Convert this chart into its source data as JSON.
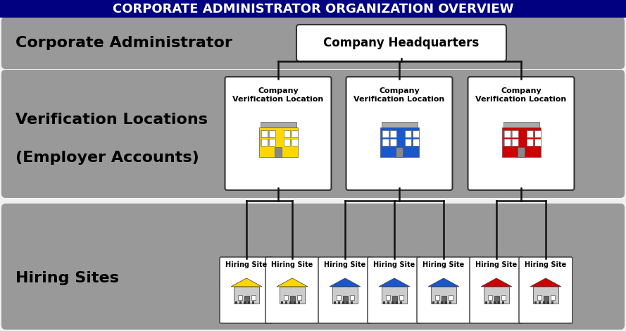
{
  "title": "CORPORATE ADMINISTRATOR ORGANIZATION OVERVIEW",
  "title_bg": "#000080",
  "title_color": "#ffffff",
  "title_fontsize": 13,
  "bg_color": "#f0f0f0",
  "panel_color": "#999999",
  "corp_admin_label": "Corporate Administrator",
  "hq_label": "Company Headquarters",
  "verif_label1": "Verification Locations",
  "verif_label2": "(Employer Accounts)",
  "hiring_label": "Hiring Sites",
  "verif_colors": [
    "#FFD700",
    "#1a56cc",
    "#CC0000"
  ],
  "hiring_colors": [
    "#FFD700",
    "#FFD700",
    "#1a56cc",
    "#1a56cc",
    "#1a56cc",
    "#CC0000",
    "#CC0000"
  ],
  "line_color": "#111111",
  "box_border": "#333333",
  "white": "#ffffff"
}
